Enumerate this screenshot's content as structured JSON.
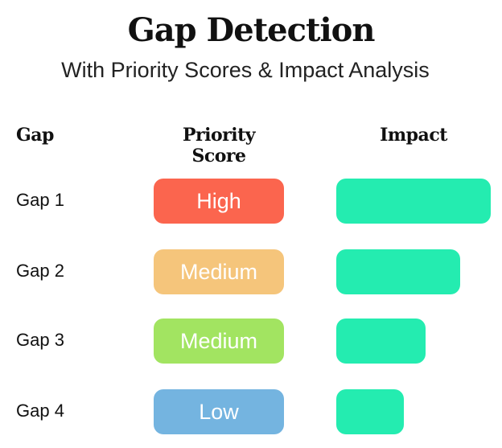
{
  "header": {
    "title": "Gap Detection",
    "subtitle": "With Priority Scores & Impact Analysis"
  },
  "columns": {
    "gap": "Gap",
    "priority": "Priority Score",
    "impact": "Impact"
  },
  "colors": {
    "High": "#fb654e",
    "Medium-orange": "#f5c57b",
    "Medium-green": "#a2e461",
    "Low": "#74b4e0",
    "impact": "#24ecb0"
  },
  "chart_data": {
    "type": "bar",
    "categories": [
      "Gap 1",
      "Gap 2",
      "Gap 3",
      "Gap 4"
    ],
    "priority_scores": [
      "High",
      "Medium",
      "Medium",
      "Low"
    ],
    "priority_colors": [
      "#fb654e",
      "#f5c57b",
      "#a2e461",
      "#74b4e0"
    ],
    "impact_values": [
      1.0,
      0.8,
      0.58,
      0.44
    ],
    "title": "Gap Detection",
    "subtitle": "With Priority Scores & Impact Analysis",
    "xlabel": "",
    "ylabel": "",
    "grid": false
  }
}
